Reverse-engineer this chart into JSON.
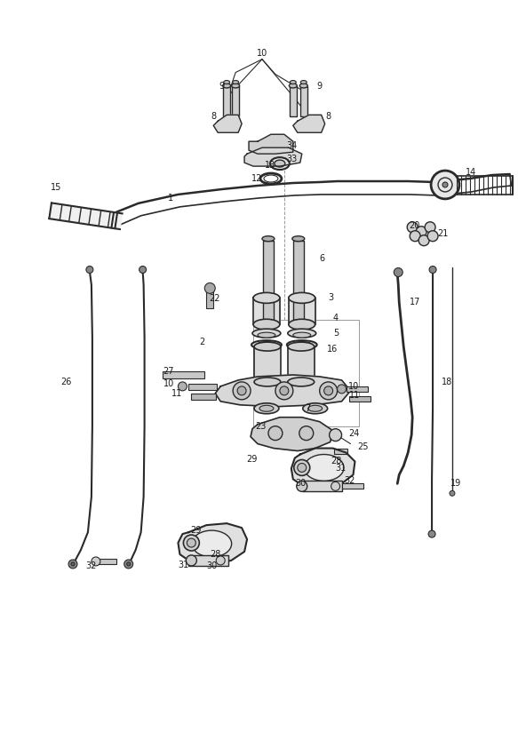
{
  "bg_color": "#ffffff",
  "lc": "#2a2a2a",
  "fig_width": 5.83,
  "fig_height": 8.24,
  "dpi": 100,
  "labels": [
    [
      "10",
      295,
      58,
      "center"
    ],
    [
      "9",
      252,
      95,
      "right"
    ],
    [
      "9",
      357,
      95,
      "left"
    ],
    [
      "8",
      243,
      130,
      "right"
    ],
    [
      "8",
      367,
      130,
      "left"
    ],
    [
      "34",
      335,
      163,
      "right"
    ],
    [
      "33",
      335,
      178,
      "right"
    ],
    [
      "13",
      310,
      185,
      "right"
    ],
    [
      "12",
      295,
      200,
      "right"
    ],
    [
      "1",
      195,
      222,
      "right"
    ],
    [
      "15",
      62,
      210,
      "center"
    ],
    [
      "14",
      525,
      193,
      "left"
    ],
    [
      "20",
      467,
      253,
      "center"
    ],
    [
      "21",
      493,
      262,
      "left"
    ],
    [
      "6",
      360,
      290,
      "left"
    ],
    [
      "3",
      370,
      335,
      "left"
    ],
    [
      "4",
      375,
      358,
      "left"
    ],
    [
      "5",
      376,
      375,
      "left"
    ],
    [
      "22",
      235,
      336,
      "left"
    ],
    [
      "2",
      230,
      385,
      "right"
    ],
    [
      "16",
      368,
      393,
      "left"
    ],
    [
      "27",
      195,
      418,
      "right"
    ],
    [
      "10",
      196,
      432,
      "right"
    ],
    [
      "11",
      205,
      443,
      "right"
    ],
    [
      "10",
      392,
      435,
      "left"
    ],
    [
      "11",
      393,
      445,
      "left"
    ],
    [
      "7",
      350,
      460,
      "right"
    ],
    [
      "17",
      462,
      340,
      "left"
    ],
    [
      "18",
      498,
      430,
      "left"
    ],
    [
      "19",
      508,
      545,
      "left"
    ],
    [
      "24",
      393,
      488,
      "left"
    ],
    [
      "25",
      403,
      503,
      "left"
    ],
    [
      "23",
      300,
      480,
      "right"
    ],
    [
      "26",
      80,
      430,
      "right"
    ],
    [
      "32",
      388,
      542,
      "left"
    ],
    [
      "31",
      378,
      528,
      "left"
    ],
    [
      "30",
      345,
      545,
      "right"
    ],
    [
      "28",
      373,
      520,
      "left"
    ],
    [
      "29",
      290,
      518,
      "right"
    ],
    [
      "28",
      248,
      625,
      "right"
    ],
    [
      "29",
      226,
      598,
      "right"
    ],
    [
      "30",
      244,
      638,
      "right"
    ],
    [
      "31",
      212,
      637,
      "right"
    ],
    [
      "32",
      108,
      638,
      "right"
    ]
  ]
}
